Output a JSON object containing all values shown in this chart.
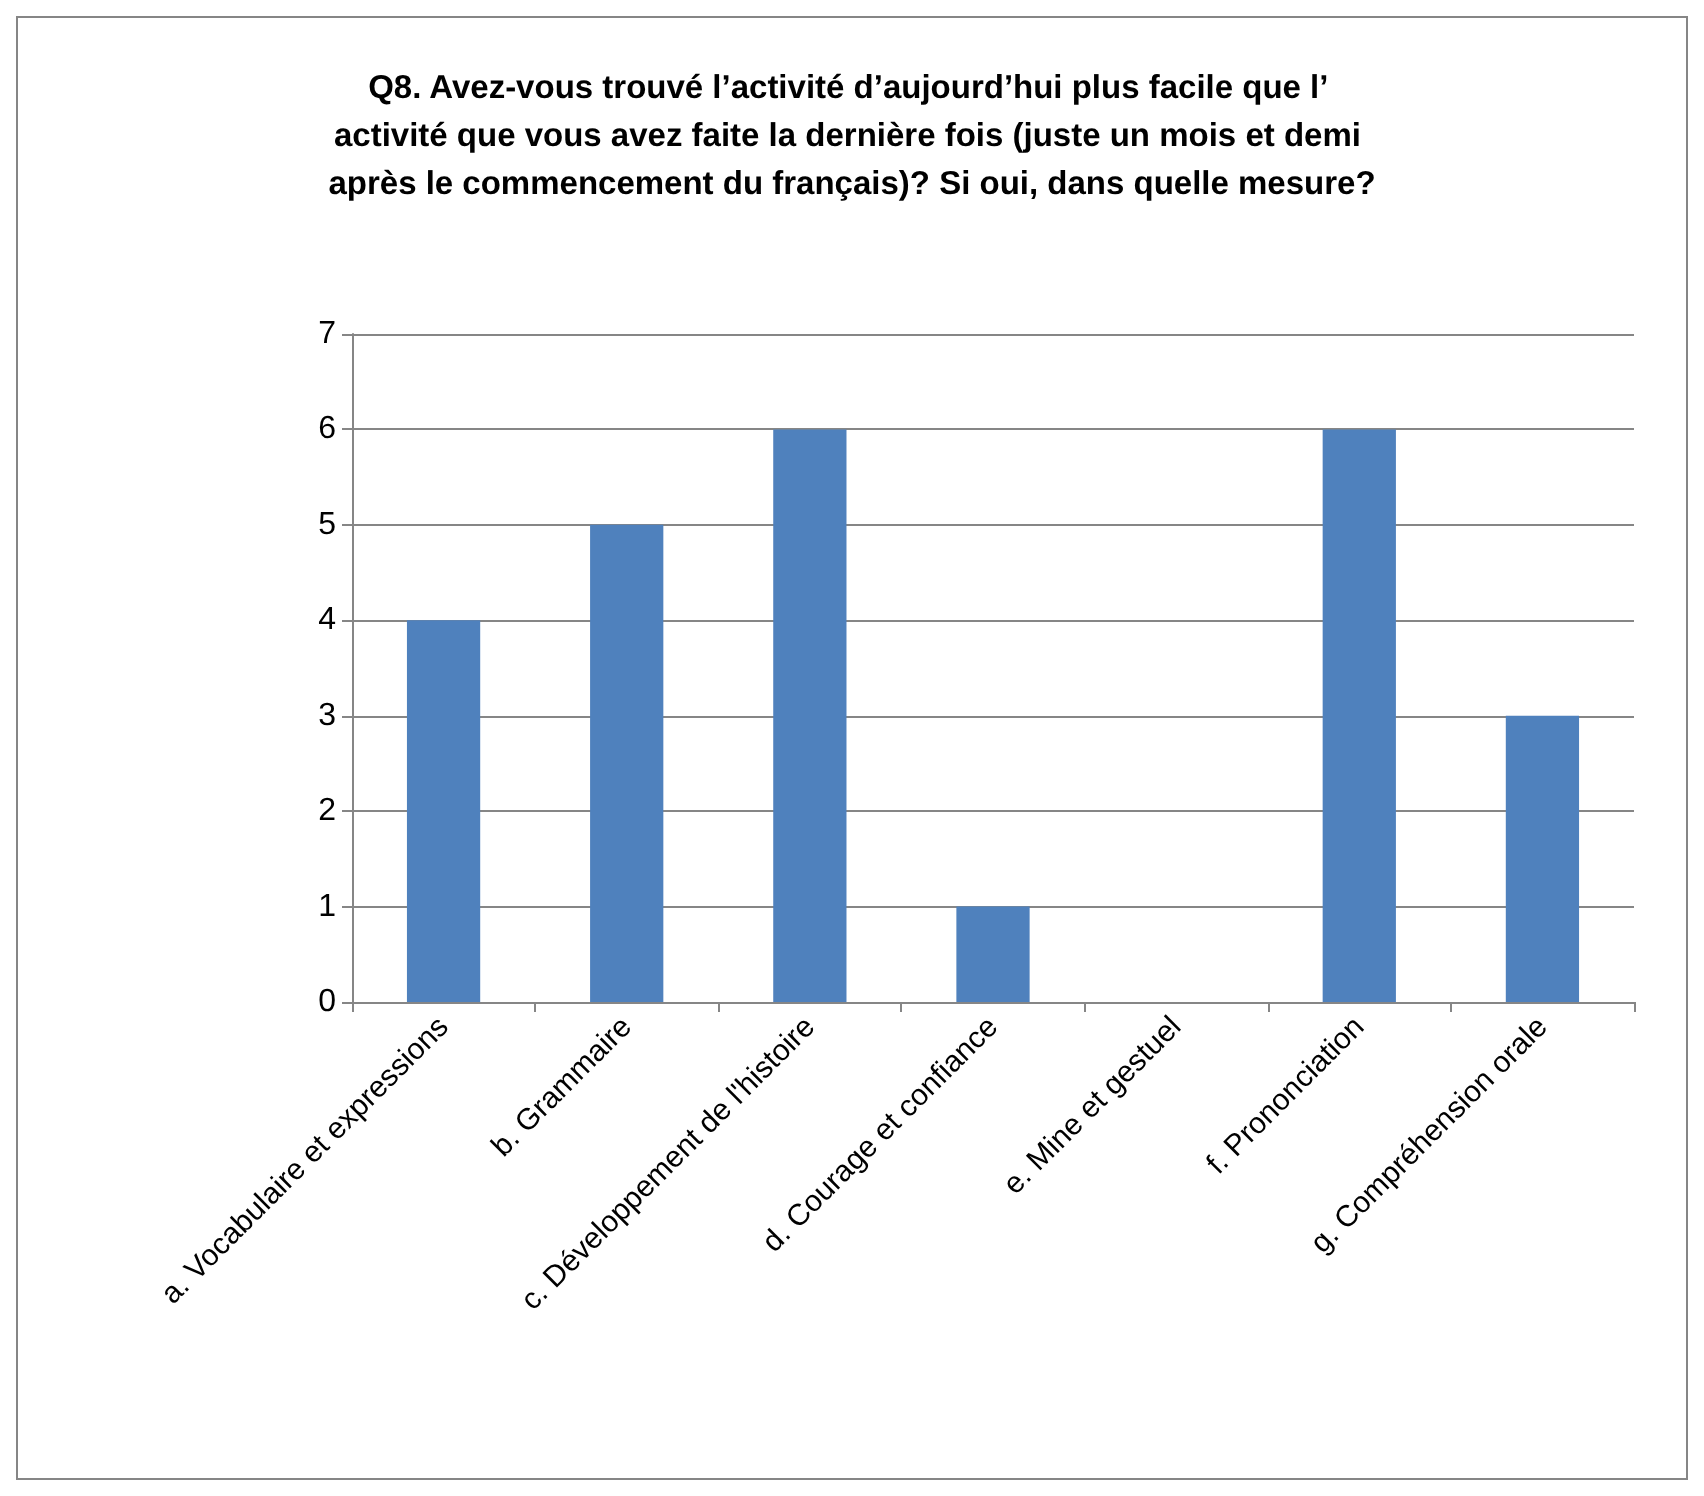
{
  "chart_data": {
    "type": "bar",
    "title": "Q8. Avez-vous trouvé l’activité d’aujourd’hui plus facile que l’ activité que vous avez faite la dernière fois (juste un mois et demi après le commencement du français)? Si oui, dans quelle mesure?",
    "categories": [
      "a. Vocabulaire et expressions",
      "b. Grammaire",
      "c. Développement de l'histoire",
      "d. Courage et confiance",
      "e. Mine et gestuel",
      "f. Prononciation",
      "g. Compréhension orale"
    ],
    "values": [
      4,
      5,
      6,
      1,
      0,
      6,
      3
    ],
    "color": "#4f81bd",
    "ylim": [
      0,
      7
    ],
    "yticks": [
      0,
      1,
      2,
      3,
      4,
      5,
      6,
      7
    ],
    "grid": "y"
  }
}
